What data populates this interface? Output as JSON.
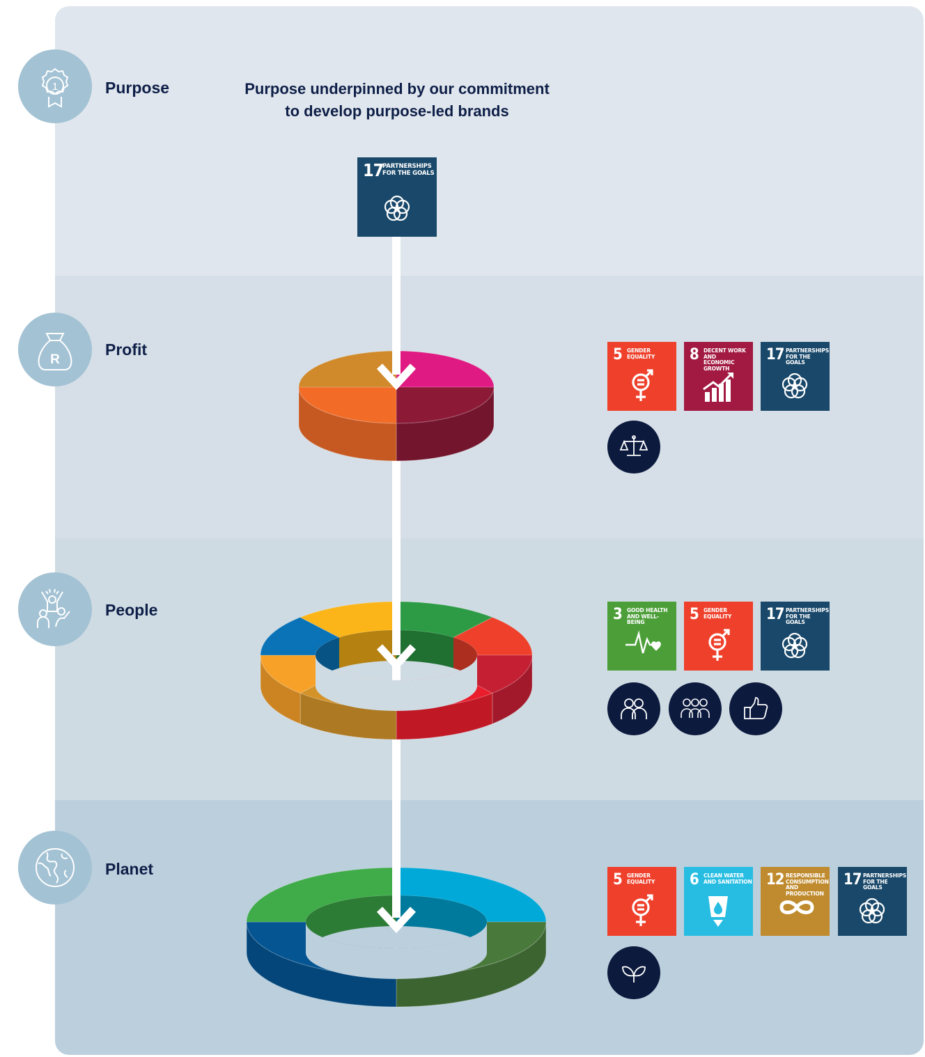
{
  "sections": {
    "purpose": {
      "label": "Purpose",
      "icon": "award-ribbon-icon"
    },
    "profit": {
      "label": "Profit",
      "icon": "money-bag-icon"
    },
    "people": {
      "label": "People",
      "icon": "celebrating-people-icon"
    },
    "planet": {
      "label": "Planet",
      "icon": "globe-icon"
    }
  },
  "heading": {
    "line1": "Purpose underpinned by our commitment",
    "line2": "to develop purpose-led brands"
  },
  "badges": {
    "purpose_ribbon": "1",
    "money_bag": "R"
  },
  "sdg": {
    "g3": {
      "number": "3",
      "text": "GOOD HEALTH\nAND WELL-BEING",
      "color": "#4c9f38",
      "icon": "heartbeat-icon"
    },
    "g5": {
      "number": "5",
      "text": "GENDER\nEQUALITY",
      "color": "#ef402b",
      "icon": "gender-equality-icon"
    },
    "g6": {
      "number": "6",
      "text": "CLEAN WATER\nAND SANITATION",
      "color": "#27bde2",
      "icon": "water-glass-icon"
    },
    "g8": {
      "number": "8",
      "text": "DECENT WORK AND\nECONOMIC GROWTH",
      "color": "#a21942",
      "icon": "growth-chart-icon"
    },
    "g12": {
      "number": "12",
      "text": "RESPONSIBLE\nCONSUMPTION\nAND PRODUCTION",
      "color": "#bf8b2e",
      "icon": "infinity-icon"
    },
    "g17": {
      "number": "17",
      "text": "PARTNERSHIPS\nFOR THE GOALS",
      "color": "#19486a",
      "icon": "rings-icon"
    }
  },
  "extra_icons": {
    "profit": [
      "scales-icon"
    ],
    "people": [
      "two-people-icon",
      "group-icon",
      "thumbs-up-icon"
    ],
    "planet": [
      "leaf-icon"
    ]
  },
  "rings": {
    "profit": [
      "#e01a83",
      "#8c1a37",
      "#f26c28",
      "#d08a2b"
    ],
    "people": [
      "#2d9b45",
      "#ee402b",
      "#c41f33",
      "#ea1d2d",
      "#d39329",
      "#f7a128",
      "#0a73b7",
      "#fbb518"
    ],
    "planet": [
      "#00a9d8",
      "#497a3c",
      "#055593",
      "#3fac49"
    ]
  }
}
